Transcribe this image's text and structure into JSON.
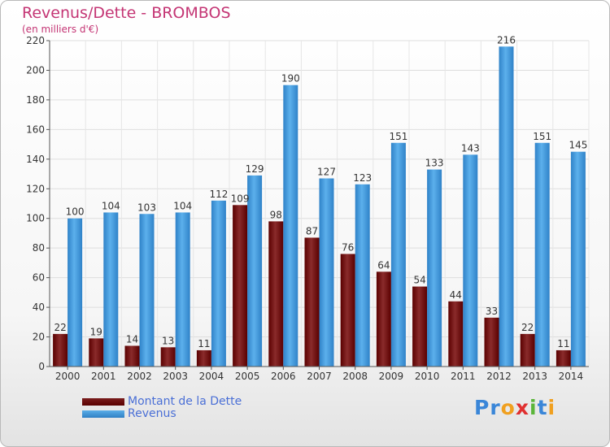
{
  "title": "Revenus/Dette - BROMBOS",
  "subtitle": "(en milliers d'€)",
  "logo_text": "Proxiti",
  "colors": {
    "debt": "#6e1414",
    "revenue": "#3d94d6",
    "title": "#c43574",
    "legend_text": "#4a6fd6"
  },
  "chart_data": {
    "type": "bar",
    "title": "Revenus/Dette - BROMBOS",
    "subtitle": "(en milliers d'€)",
    "xlabel": "",
    "ylabel": "",
    "ylim": [
      0,
      220
    ],
    "yticks": [
      0,
      20,
      40,
      60,
      80,
      100,
      120,
      140,
      160,
      180,
      200,
      220
    ],
    "categories": [
      "2000",
      "2001",
      "2002",
      "2003",
      "2004",
      "2005",
      "2006",
      "2007",
      "2008",
      "2009",
      "2010",
      "2011",
      "2012",
      "2013",
      "2014"
    ],
    "series": [
      {
        "name": "Montant de la Dette",
        "color": "#6e1414",
        "values": [
          22,
          19,
          14,
          13,
          11,
          109,
          98,
          87,
          76,
          64,
          54,
          44,
          33,
          22,
          11
        ]
      },
      {
        "name": "Revenus",
        "color": "#3d94d6",
        "values": [
          100,
          104,
          103,
          104,
          112,
          129,
          190,
          127,
          123,
          151,
          133,
          143,
          216,
          151,
          145
        ]
      }
    ],
    "grid": true,
    "legend_position": "bottom-left"
  }
}
